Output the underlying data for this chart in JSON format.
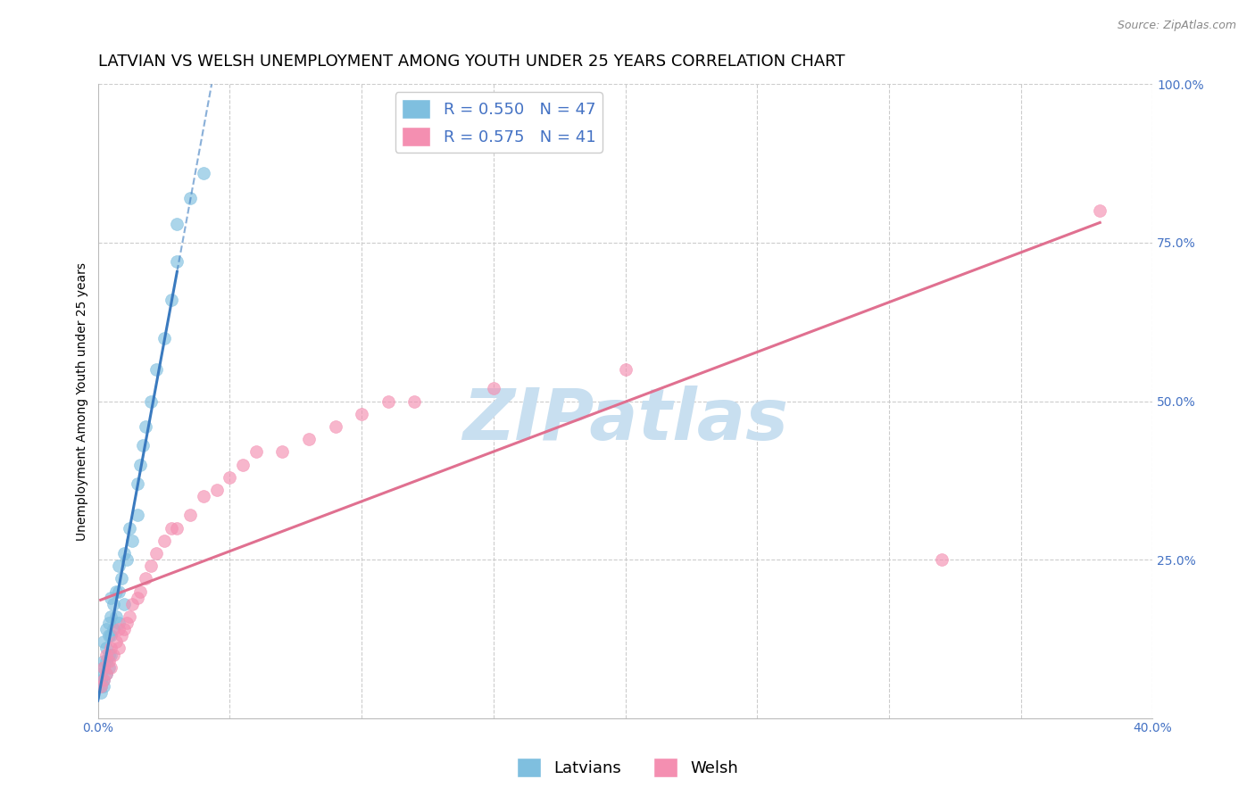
{
  "title": "LATVIAN VS WELSH UNEMPLOYMENT AMONG YOUTH UNDER 25 YEARS CORRELATION CHART",
  "source": "Source: ZipAtlas.com",
  "xlabel": "",
  "ylabel": "Unemployment Among Youth under 25 years",
  "xlim": [
    0.0,
    0.4
  ],
  "ylim": [
    0.0,
    1.0
  ],
  "latvians_color": "#7fbfdf",
  "welsh_color": "#f48fb1",
  "latvians_line_color": "#3a7abf",
  "welsh_line_color": "#e07090",
  "R_latvians": 0.55,
  "N_latvians": 47,
  "R_welsh": 0.575,
  "N_welsh": 41,
  "watermark": "ZIPatlas",
  "watermark_color": "#c8dff0",
  "legend_label_latvians": "Latvians",
  "legend_label_welsh": "Welsh",
  "background_color": "#ffffff",
  "grid_color": "#cccccc",
  "title_fontsize": 13,
  "axis_label_fontsize": 10,
  "tick_fontsize": 10,
  "legend_fontsize": 13,
  "tick_color": "#4472c4",
  "latvians_x": [
    0.001,
    0.001,
    0.001,
    0.001,
    0.002,
    0.002,
    0.002,
    0.002,
    0.002,
    0.003,
    0.003,
    0.003,
    0.003,
    0.004,
    0.004,
    0.004,
    0.004,
    0.005,
    0.005,
    0.005,
    0.005,
    0.006,
    0.006,
    0.007,
    0.007,
    0.008,
    0.008,
    0.008,
    0.009,
    0.01,
    0.01,
    0.011,
    0.012,
    0.013,
    0.015,
    0.015,
    0.016,
    0.017,
    0.018,
    0.02,
    0.022,
    0.025,
    0.028,
    0.03,
    0.03,
    0.035,
    0.04
  ],
  "latvians_y": [
    0.04,
    0.05,
    0.06,
    0.07,
    0.05,
    0.06,
    0.08,
    0.09,
    0.12,
    0.07,
    0.09,
    0.11,
    0.14,
    0.08,
    0.1,
    0.13,
    0.15,
    0.1,
    0.13,
    0.16,
    0.19,
    0.14,
    0.18,
    0.16,
    0.2,
    0.15,
    0.2,
    0.24,
    0.22,
    0.18,
    0.26,
    0.25,
    0.3,
    0.28,
    0.32,
    0.37,
    0.4,
    0.43,
    0.46,
    0.5,
    0.55,
    0.6,
    0.66,
    0.72,
    0.78,
    0.82,
    0.86
  ],
  "welsh_x": [
    0.001,
    0.002,
    0.002,
    0.003,
    0.003,
    0.004,
    0.005,
    0.005,
    0.006,
    0.007,
    0.008,
    0.008,
    0.009,
    0.01,
    0.011,
    0.012,
    0.013,
    0.015,
    0.016,
    0.018,
    0.02,
    0.022,
    0.025,
    0.028,
    0.03,
    0.035,
    0.04,
    0.045,
    0.05,
    0.055,
    0.06,
    0.07,
    0.08,
    0.09,
    0.1,
    0.11,
    0.12,
    0.15,
    0.2,
    0.32,
    0.38
  ],
  "welsh_y": [
    0.05,
    0.06,
    0.08,
    0.07,
    0.1,
    0.09,
    0.08,
    0.11,
    0.1,
    0.12,
    0.11,
    0.14,
    0.13,
    0.14,
    0.15,
    0.16,
    0.18,
    0.19,
    0.2,
    0.22,
    0.24,
    0.26,
    0.28,
    0.3,
    0.3,
    0.32,
    0.35,
    0.36,
    0.38,
    0.4,
    0.42,
    0.42,
    0.44,
    0.46,
    0.48,
    0.5,
    0.5,
    0.52,
    0.55,
    0.25,
    0.8
  ]
}
